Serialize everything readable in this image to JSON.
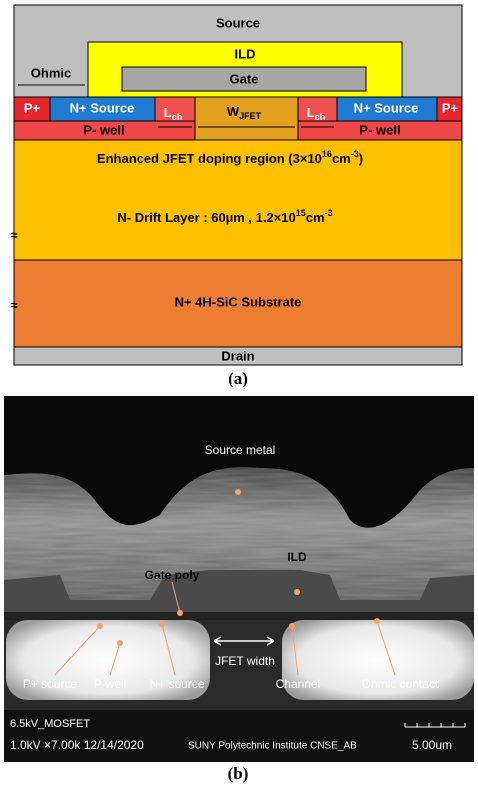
{
  "panel_a": {
    "source": "Source",
    "ild": "ILD",
    "gate": "Gate",
    "ohmic": "Ohmic",
    "p_plus_left": "P+",
    "n_source_left": "N+ Source",
    "lch_left": {
      "main": "L",
      "sub": "ch"
    },
    "wjfet": {
      "main": "W",
      "sub": "JFET"
    },
    "lch_right": {
      "main": "L",
      "sub": "ch"
    },
    "n_source_right": "N+ Source",
    "p_plus_right": "P+",
    "pwell_left": "P- well",
    "pwell_right": "P- well",
    "enhanced": [
      "Enhanced JFET doping region (3×10",
      "16",
      "cm",
      "-3",
      ")"
    ],
    "drift": [
      "N- Drift Layer : 60µm , 1.2×10",
      "15",
      "cm",
      "-3"
    ],
    "substrate": "N+ 4H-SiC Substrate",
    "drain": "Drain",
    "break_marks": [
      "≈",
      "≈"
    ],
    "caption": "(a)"
  },
  "panel_b": {
    "source_metal": "Source metal",
    "ild": "ILD",
    "gate_poly": "Gate poly",
    "jfet_width": "JFET width",
    "p_plus_source": "P+ source",
    "p_well": "P-well",
    "n_plus_source": "N+ source",
    "channel": "Channel",
    "ohmic_contact": "Ohmic contact",
    "sample": "6.5kV_MOSFET",
    "settings": "1.0kV ×7.00k 12/14/2020",
    "institute": "SUNY Polytechnic Institute CNSE_AB",
    "scale": "5.00um",
    "caption": "(b)"
  }
}
